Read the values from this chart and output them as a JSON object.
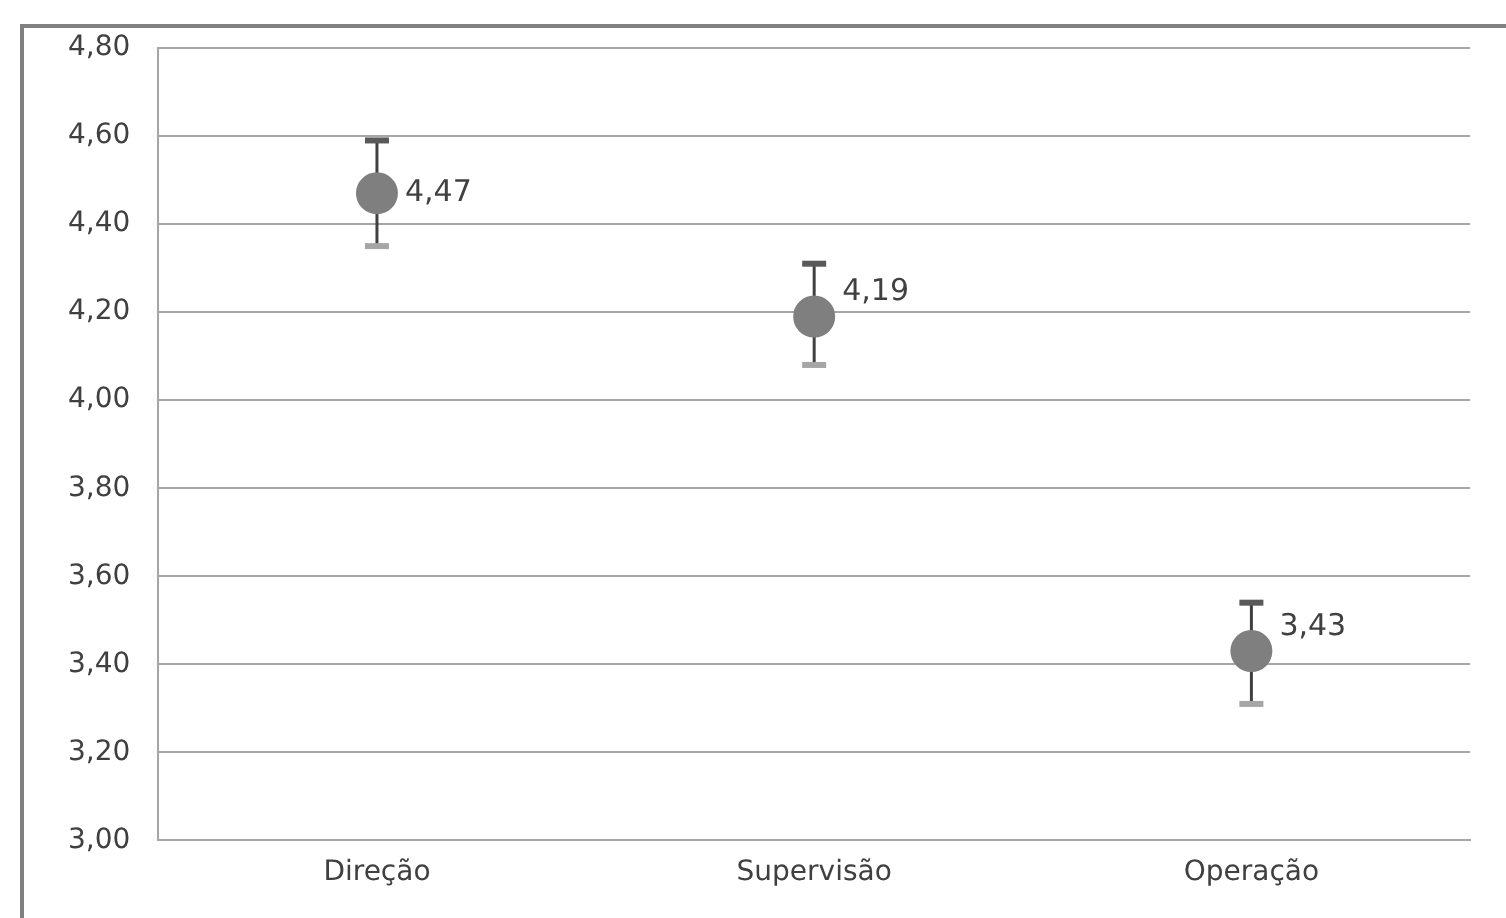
{
  "chart_data": {
    "type": "scatter",
    "categories": [
      "Direção",
      "Supervisão",
      "Operação"
    ],
    "series": [
      {
        "color": "#7f7f7f",
        "values": [
          4.47,
          4.19,
          3.43
        ],
        "errors": [
          [
            4.35,
            4.59
          ],
          [
            4.08,
            4.31
          ],
          [
            3.31,
            3.54
          ]
        ],
        "value_labels": [
          "4,47",
          "4,19",
          "3,43"
        ]
      }
    ],
    "ylim": [
      3,
      4.8
    ],
    "yticks": [
      {
        "value": 3,
        "label": "3,00"
      },
      {
        "value": 3.2,
        "label": "3,20"
      },
      {
        "value": 3.4,
        "label": "3,40"
      },
      {
        "value": 3.6,
        "label": "3,60"
      },
      {
        "value": 3.8,
        "label": "3,80"
      },
      {
        "value": 4,
        "label": "4,00"
      },
      {
        "value": 4.2,
        "label": "4,20"
      },
      {
        "value": 4.4,
        "label": "4,40"
      },
      {
        "value": 4.6,
        "label": "4,60"
      },
      {
        "value": 4.8,
        "label": "4,80"
      }
    ],
    "grid": "y",
    "marker": "circle",
    "legend": false
  }
}
